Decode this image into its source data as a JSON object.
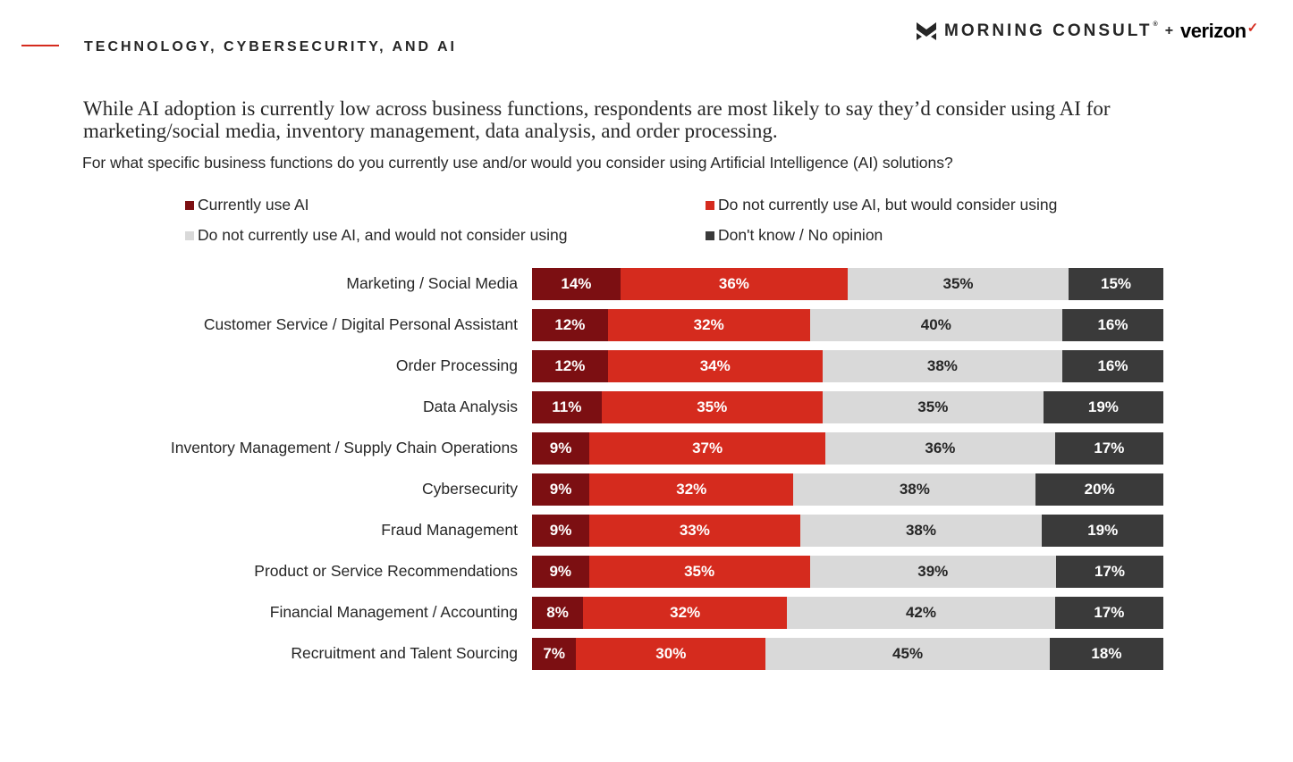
{
  "header": {
    "section_title": "TECHNOLOGY, CYBERSECURITY, AND AI",
    "brand_primary": "MORNING CONSULT",
    "brand_reg": "®",
    "brand_plus": "+",
    "brand_partner": "verizon",
    "brand_partner_mark": "✓"
  },
  "headline": "While AI adoption is currently low across business functions, respondents are most likely to say they’d consider using AI for marketing/social media, inventory management, data analysis, and order processing.",
  "question": "For what specific business functions do you currently use and/or would you consider using Artificial Intelligence (AI) solutions?",
  "colors": {
    "currently_use": "#7c0f12",
    "would_consider": "#d52b1e",
    "would_not_consider": "#d9d9d9",
    "dont_know": "#3a3a3a",
    "accent": "#d52b1e"
  },
  "chart_data": {
    "type": "bar",
    "orientation": "horizontal",
    "stacked": true,
    "title": "For what specific business functions do you currently use and/or would you consider using Artificial Intelligence (AI) solutions?",
    "xlabel": "",
    "ylabel": "",
    "legend_position": "top",
    "unit": "%",
    "categories": [
      "Marketing / Social Media",
      "Customer Service / Digital Personal Assistant",
      "Order Processing",
      "Data Analysis",
      "Inventory Management / Supply Chain Operations",
      "Cybersecurity",
      "Fraud Management",
      "Product or Service Recommendations",
      "Financial Management / Accounting",
      "Recruitment and Talent Sourcing"
    ],
    "series": [
      {
        "name": "Currently use AI",
        "values": [
          14,
          12,
          12,
          11,
          9,
          9,
          9,
          9,
          8,
          7
        ]
      },
      {
        "name": "Do not currently use AI, but would consider using",
        "values": [
          36,
          32,
          34,
          35,
          37,
          32,
          33,
          35,
          32,
          30
        ]
      },
      {
        "name": "Do not currently use AI, and would not consider using",
        "values": [
          35,
          40,
          38,
          35,
          36,
          38,
          38,
          39,
          42,
          45
        ]
      },
      {
        "name": "Don't know / No opinion",
        "values": [
          15,
          16,
          16,
          19,
          17,
          20,
          19,
          17,
          17,
          18
        ]
      }
    ],
    "legend": [
      "Currently use AI",
      "Do not currently use AI, but would consider using",
      "Do not currently use AI, and would not consider using",
      "Don't know / No opinion"
    ]
  }
}
